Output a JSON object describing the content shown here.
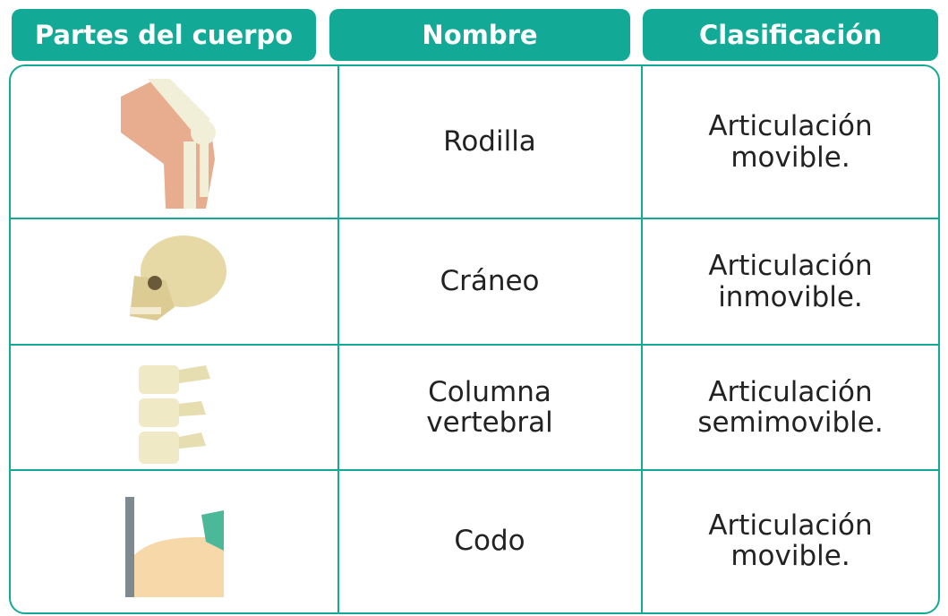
{
  "table": {
    "header": [
      "Partes del cuerpo",
      "Nombre",
      "Clasificación"
    ],
    "rows": [
      [
        "Rodilla",
        "Articulación movible."
      ],
      [
        "Cráneo",
        "Articulación inmovible."
      ],
      [
        "Columna vertebral",
        "Articulación semimovible."
      ],
      [
        "Codo",
        "Articulación movible."
      ]
    ]
  }
}
